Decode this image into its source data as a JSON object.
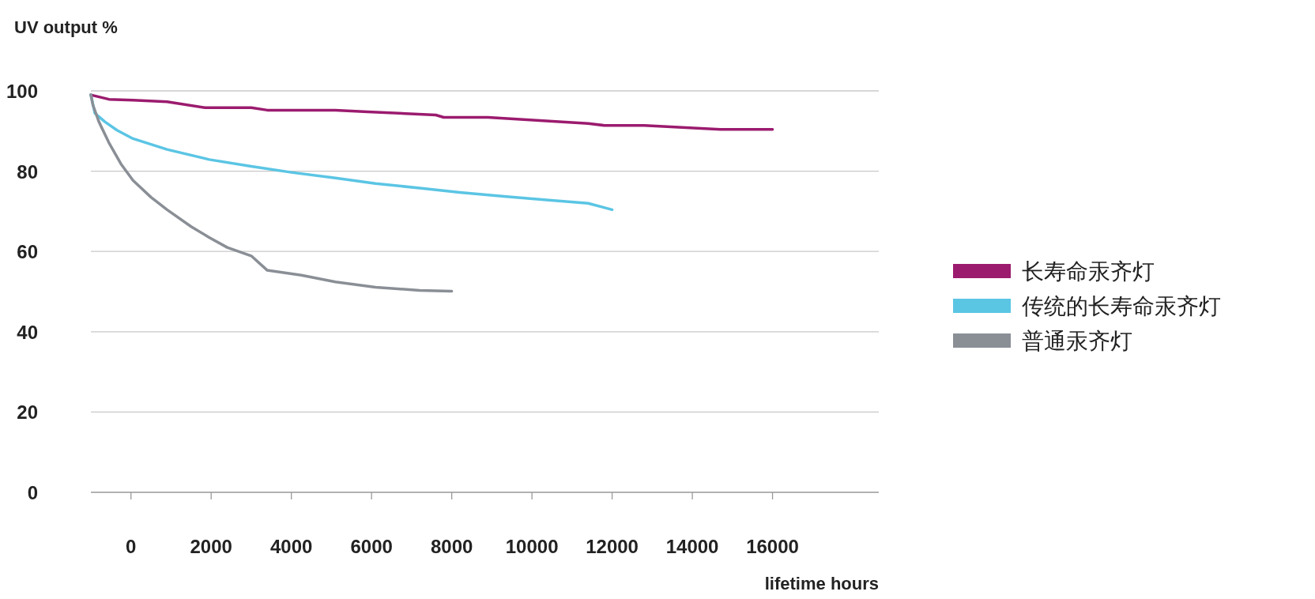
{
  "chart_data": {
    "type": "line",
    "ylabel": "UV output %",
    "xlabel": "lifetime hours",
    "xlim": [
      -1000,
      18650
    ],
    "ylim": [
      0,
      100
    ],
    "xticks": [
      0,
      2000,
      4000,
      6000,
      8000,
      10000,
      12000,
      14000,
      16000
    ],
    "yticks": [
      0,
      20,
      40,
      60,
      80,
      100
    ],
    "grid": "y",
    "legend": "right",
    "marker": "none",
    "line_style": "solid",
    "series": [
      {
        "name": "长寿命汞齐灯",
        "color": "#9b1b6e",
        "x": [
          -1000,
          -550,
          50,
          900,
          1850,
          3000,
          3400,
          5100,
          5900,
          7600,
          7800,
          8900,
          11400,
          11800,
          12800,
          14700,
          16000
        ],
        "values": [
          99,
          97.9,
          97.7,
          97.3,
          95.8,
          95.8,
          95.2,
          95.2,
          94.8,
          94,
          93.4,
          93.4,
          91.9,
          91.4,
          91.4,
          90.4,
          90.4
        ]
      },
      {
        "name": "传统的长寿命汞齐灯",
        "color": "#5bc5e4",
        "x": [
          -1000,
          -900,
          -650,
          -350,
          50,
          900,
          1950,
          3000,
          4000,
          5100,
          6100,
          7200,
          8200,
          9300,
          10300,
          11400,
          12000
        ],
        "values": [
          99,
          94.4,
          92.3,
          90.2,
          88.1,
          85.4,
          82.9,
          81.2,
          79.7,
          78.3,
          76.9,
          75.8,
          74.7,
          73.7,
          72.9,
          72,
          70.4
        ]
      },
      {
        "name": "普通汞齐灯",
        "color": "#8a8f96",
        "x": [
          -1000,
          -950,
          -800,
          -550,
          -250,
          50,
          500,
          900,
          1500,
          1950,
          2400,
          3000,
          3400,
          4250,
          5100,
          6100,
          7200,
          8000
        ],
        "values": [
          99,
          96.5,
          92.3,
          87.1,
          81.8,
          77.7,
          73.5,
          70.4,
          66.2,
          63.5,
          61,
          58.9,
          55.3,
          54.1,
          52.4,
          51.1,
          50.3,
          50.1
        ]
      }
    ]
  }
}
